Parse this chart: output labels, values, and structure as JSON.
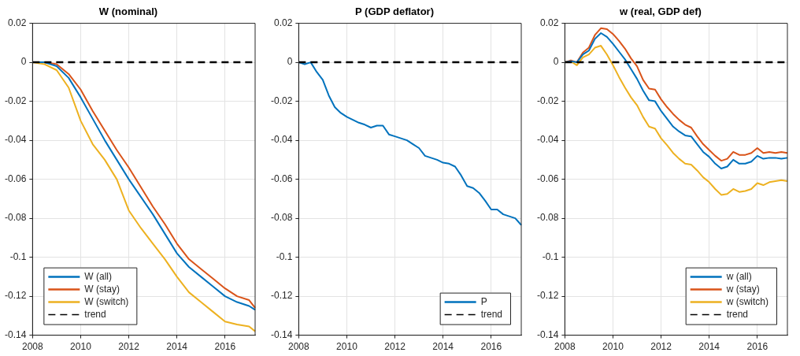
{
  "chart_data": [
    {
      "type": "line",
      "title": "W (nominal)",
      "xlim": [
        2008,
        2017.25
      ],
      "xticks": [
        2008,
        2010,
        2012,
        2014,
        2016
      ],
      "ylim": [
        -0.14,
        0.02
      ],
      "yticks": [
        -0.14,
        -0.12,
        -0.1,
        -0.08,
        -0.06,
        -0.04,
        -0.02,
        0,
        0.02
      ],
      "grid": true,
      "legend": "bottom left",
      "x": [
        2008,
        2008.5,
        2009,
        2009.5,
        2010,
        2010.5,
        2011,
        2011.5,
        2012,
        2012.5,
        2013,
        2013.5,
        2014,
        2014.5,
        2015,
        2015.5,
        2016,
        2016.5,
        2017,
        2017.25
      ],
      "series": [
        {
          "name": "W (all)",
          "color": "#0072bd",
          "values": [
            0,
            0,
            -0.002,
            -0.008,
            -0.018,
            -0.029,
            -0.04,
            -0.05,
            -0.06,
            -0.069,
            -0.078,
            -0.088,
            -0.098,
            -0.105,
            -0.11,
            -0.115,
            -0.12,
            -0.123,
            -0.125,
            -0.127
          ]
        },
        {
          "name": "W (stay)",
          "color": "#d95319",
          "values": [
            0,
            0,
            -0.001,
            -0.006,
            -0.014,
            -0.025,
            -0.035,
            -0.045,
            -0.054,
            -0.064,
            -0.074,
            -0.083,
            -0.093,
            -0.101,
            -0.106,
            -0.111,
            -0.116,
            -0.12,
            -0.122,
            -0.126
          ]
        },
        {
          "name": "W (switch)",
          "color": "#edb120",
          "values": [
            0,
            -0.001,
            -0.004,
            -0.013,
            -0.03,
            -0.042,
            -0.05,
            -0.06,
            -0.076,
            -0.085,
            -0.093,
            -0.101,
            -0.11,
            -0.118,
            -0.123,
            -0.128,
            -0.133,
            -0.1345,
            -0.1355,
            -0.138
          ]
        }
      ],
      "ref_lines": [
        {
          "axis": "y",
          "value": 0,
          "label": "trend",
          "color": "#000000",
          "line_style": "dashed"
        }
      ]
    },
    {
      "type": "line",
      "title": "P (GDP deflator)",
      "xlim": [
        2008,
        2017.25
      ],
      "xticks": [
        2008,
        2010,
        2012,
        2014,
        2016
      ],
      "ylim": [
        -0.14,
        0.02
      ],
      "yticks": [
        -0.14,
        -0.12,
        -0.1,
        -0.08,
        -0.06,
        -0.04,
        -0.02,
        0,
        0.02
      ],
      "grid": true,
      "legend": "bottom right",
      "x": [
        2008,
        2008.25,
        2008.5,
        2008.75,
        2009,
        2009.25,
        2009.5,
        2009.75,
        2010,
        2010.25,
        2010.5,
        2010.75,
        2011,
        2011.25,
        2011.5,
        2011.75,
        2012,
        2012.25,
        2012.5,
        2012.75,
        2013,
        2013.25,
        2013.5,
        2013.75,
        2014,
        2014.25,
        2014.5,
        2014.75,
        2015,
        2015.25,
        2015.5,
        2015.75,
        2016,
        2016.25,
        2016.5,
        2016.75,
        2017,
        2017.25
      ],
      "series": [
        {
          "name": "P",
          "color": "#0072bd",
          "values": [
            0,
            -0.001,
            0,
            -0.005,
            -0.009,
            -0.017,
            -0.023,
            -0.026,
            -0.028,
            -0.0295,
            -0.031,
            -0.032,
            -0.0335,
            -0.0325,
            -0.0325,
            -0.037,
            -0.038,
            -0.039,
            -0.04,
            -0.042,
            -0.044,
            -0.048,
            -0.049,
            -0.05,
            -0.0515,
            -0.052,
            -0.0535,
            -0.058,
            -0.0635,
            -0.0645,
            -0.067,
            -0.071,
            -0.0755,
            -0.0755,
            -0.078,
            -0.079,
            -0.08,
            -0.0835
          ]
        }
      ],
      "ref_lines": [
        {
          "axis": "y",
          "value": 0,
          "label": "trend",
          "color": "#000000",
          "line_style": "dashed"
        }
      ]
    },
    {
      "type": "line",
      "title": "w (real, GDP def)",
      "xlim": [
        2008,
        2017.25
      ],
      "xticks": [
        2008,
        2010,
        2012,
        2014,
        2016
      ],
      "ylim": [
        -0.14,
        0.02
      ],
      "yticks": [
        -0.14,
        -0.12,
        -0.1,
        -0.08,
        -0.06,
        -0.04,
        -0.02,
        0,
        0.02
      ],
      "grid": true,
      "legend": "bottom right",
      "x": [
        2008,
        2008.25,
        2008.5,
        2008.75,
        2009,
        2009.25,
        2009.5,
        2009.75,
        2010,
        2010.25,
        2010.5,
        2010.75,
        2011,
        2011.25,
        2011.5,
        2011.75,
        2012,
        2012.25,
        2012.5,
        2012.75,
        2013,
        2013.25,
        2013.5,
        2013.75,
        2014,
        2014.25,
        2014.5,
        2014.75,
        2015,
        2015.25,
        2015.5,
        2015.75,
        2016,
        2016.25,
        2016.5,
        2016.75,
        2017,
        2017.25
      ],
      "series": [
        {
          "name": "w (all)",
          "color": "#0072bd",
          "values": [
            0,
            0.0005,
            0,
            0.004,
            0.006,
            0.012,
            0.015,
            0.013,
            0.0095,
            0.0055,
            0.0015,
            -0.0035,
            -0.0085,
            -0.0145,
            -0.0195,
            -0.02,
            -0.025,
            -0.029,
            -0.033,
            -0.0355,
            -0.0375,
            -0.038,
            -0.042,
            -0.046,
            -0.0485,
            -0.052,
            -0.0545,
            -0.0535,
            -0.05,
            -0.052,
            -0.052,
            -0.051,
            -0.048,
            -0.0495,
            -0.049,
            -0.049,
            -0.0495,
            -0.049
          ]
        },
        {
          "name": "w (stay)",
          "color": "#d95319",
          "values": [
            0,
            0.001,
            0,
            0.005,
            0.0075,
            0.014,
            0.0175,
            0.017,
            0.0145,
            0.011,
            0.007,
            0.002,
            -0.002,
            -0.009,
            -0.0135,
            -0.014,
            -0.019,
            -0.023,
            -0.0265,
            -0.0295,
            -0.032,
            -0.0335,
            -0.038,
            -0.042,
            -0.045,
            -0.048,
            -0.0505,
            -0.0495,
            -0.046,
            -0.0475,
            -0.0475,
            -0.0465,
            -0.044,
            -0.0465,
            -0.046,
            -0.0465,
            -0.046,
            -0.0465
          ]
        },
        {
          "name": "w (switch)",
          "color": "#edb120",
          "values": [
            0,
            0.0005,
            -0.0015,
            0.0025,
            0.004,
            0.0075,
            0.0085,
            0.004,
            -0.0015,
            -0.0075,
            -0.013,
            -0.018,
            -0.022,
            -0.028,
            -0.033,
            -0.034,
            -0.039,
            -0.0425,
            -0.0465,
            -0.0495,
            -0.052,
            -0.0525,
            -0.0555,
            -0.059,
            -0.0615,
            -0.065,
            -0.068,
            -0.0675,
            -0.065,
            -0.0665,
            -0.066,
            -0.065,
            -0.062,
            -0.063,
            -0.0615,
            -0.061,
            -0.0605,
            -0.061
          ]
        }
      ],
      "ref_lines": [
        {
          "axis": "y",
          "value": 0,
          "label": "trend",
          "color": "#000000",
          "line_style": "dashed"
        }
      ]
    }
  ]
}
